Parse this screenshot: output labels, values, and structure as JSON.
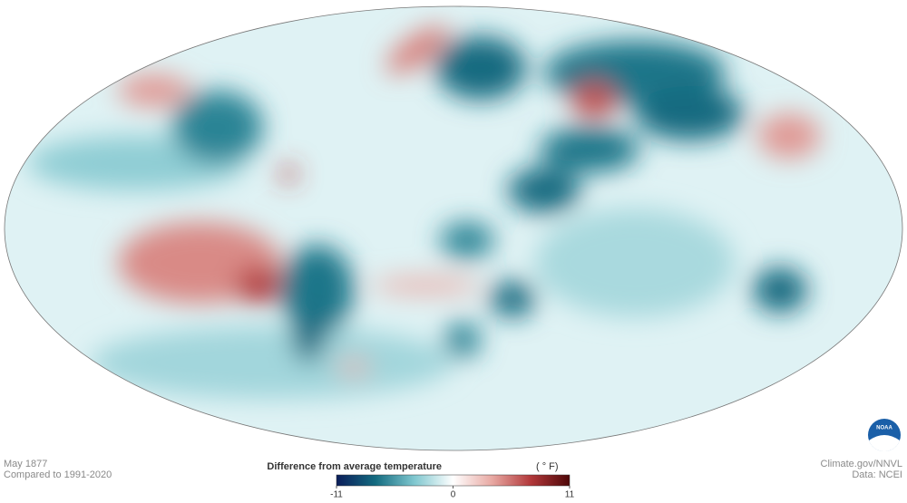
{
  "caption": {
    "date": "May 1877",
    "baseline": "Compared to 1991-2020"
  },
  "legend": {
    "title": "Difference from average temperature",
    "unit": "( ° F)",
    "range": [
      -11,
      11
    ],
    "ticks": [
      -11,
      0,
      11
    ],
    "colors": [
      "#0b1d5a",
      "#136b80",
      "#7fc7cf",
      "#ffffff",
      "#e8a9a3",
      "#b2383a",
      "#4e0708"
    ]
  },
  "credits": {
    "source": "Climate.gov/NNVL",
    "data": "Data: NCEI"
  },
  "logo": "NOAA"
}
